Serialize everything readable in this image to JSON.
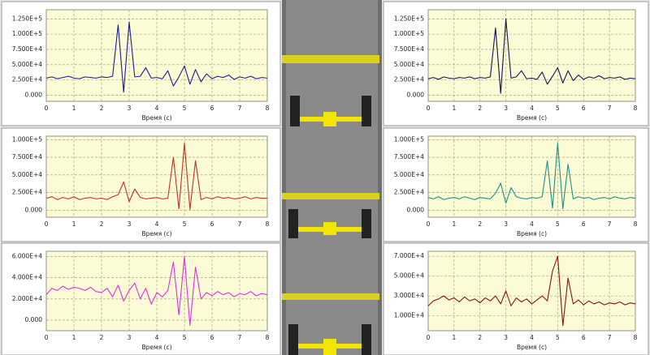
{
  "chart_data": [
    {
      "type": "line",
      "xlabel": "Время (с)",
      "color": "#1c1c8e",
      "grid": true,
      "x": [
        0,
        0.2,
        0.4,
        0.6,
        0.8,
        1,
        1.2,
        1.4,
        1.6,
        1.8,
        2,
        2.2,
        2.4,
        2.6,
        2.8,
        3,
        3.2,
        3.4,
        3.6,
        3.8,
        4,
        4.2,
        4.4,
        4.6,
        4.8,
        5,
        5.2,
        5.4,
        5.6,
        5.8,
        6,
        6.2,
        6.4,
        6.6,
        6.8,
        7,
        7.2,
        7.4,
        7.6,
        7.8,
        8
      ],
      "values": [
        28000,
        30000,
        27000,
        29000,
        31000,
        28000,
        27000,
        30000,
        29000,
        28000,
        30000,
        29000,
        31000,
        115000,
        5000,
        120000,
        30000,
        31000,
        45000,
        28000,
        29000,
        27000,
        40000,
        15000,
        30000,
        48000,
        18000,
        42000,
        22000,
        35000,
        27000,
        31000,
        29000,
        33000,
        26000,
        30000,
        28000,
        31000,
        27000,
        29000,
        28000
      ],
      "xlim": [
        0,
        8
      ],
      "xticks": [
        0,
        1,
        2,
        3,
        4,
        5,
        6,
        7,
        8
      ],
      "ylim": [
        -10000,
        140000
      ],
      "yticks": [
        {
          "value": 0,
          "label": "0.000"
        },
        {
          "value": 25000,
          "label": "2.500E+4"
        },
        {
          "value": 50000,
          "label": "5.000E+4"
        },
        {
          "value": 75000,
          "label": "7.500E+4"
        },
        {
          "value": 100000,
          "label": "1.000E+5"
        },
        {
          "value": 125000,
          "label": "1.250E+5"
        }
      ]
    },
    {
      "type": "line",
      "xlabel": "Время (с)",
      "color": "#141452",
      "grid": true,
      "x": [
        0,
        0.2,
        0.4,
        0.6,
        0.8,
        1,
        1.2,
        1.4,
        1.6,
        1.8,
        2,
        2.2,
        2.4,
        2.6,
        2.8,
        3,
        3.2,
        3.4,
        3.6,
        3.8,
        4,
        4.2,
        4.4,
        4.6,
        4.8,
        5,
        5.2,
        5.4,
        5.6,
        5.8,
        6,
        6.2,
        6.4,
        6.6,
        6.8,
        7,
        7.2,
        7.4,
        7.6,
        7.8,
        8
      ],
      "values": [
        27000,
        29000,
        26000,
        30000,
        28000,
        27000,
        29000,
        28000,
        30000,
        27000,
        29000,
        28000,
        30000,
        110000,
        3000,
        125000,
        28000,
        30000,
        40000,
        27000,
        28000,
        26000,
        38000,
        18000,
        31000,
        45000,
        20000,
        40000,
        24000,
        33000,
        26000,
        30000,
        28000,
        32000,
        27000,
        29000,
        28000,
        30000,
        26000,
        28000,
        27000
      ],
      "xlim": [
        0,
        8
      ],
      "xticks": [
        0,
        1,
        2,
        3,
        4,
        5,
        6,
        7,
        8
      ],
      "ylim": [
        -10000,
        140000
      ],
      "yticks": [
        {
          "value": 0,
          "label": "0.000"
        },
        {
          "value": 25000,
          "label": "2.500E+4"
        },
        {
          "value": 50000,
          "label": "5.000E+4"
        },
        {
          "value": 75000,
          "label": "7.500E+4"
        },
        {
          "value": 100000,
          "label": "1.000E+5"
        },
        {
          "value": 125000,
          "label": "1.250E+5"
        }
      ]
    },
    {
      "type": "line",
      "xlabel": "Время (с)",
      "color": "#c43222",
      "grid": true,
      "x": [
        0,
        0.2,
        0.4,
        0.6,
        0.8,
        1,
        1.2,
        1.4,
        1.6,
        1.8,
        2,
        2.2,
        2.4,
        2.6,
        2.8,
        3,
        3.2,
        3.4,
        3.6,
        3.8,
        4,
        4.2,
        4.4,
        4.6,
        4.8,
        5,
        5.2,
        5.4,
        5.6,
        5.8,
        6,
        6.2,
        6.4,
        6.6,
        6.8,
        7,
        7.2,
        7.4,
        7.6,
        7.8,
        8
      ],
      "values": [
        17000,
        19000,
        15000,
        18000,
        16000,
        19000,
        15000,
        17000,
        18000,
        16000,
        17000,
        15000,
        19000,
        22000,
        40000,
        12000,
        30000,
        18000,
        16000,
        17000,
        18000,
        16000,
        17000,
        75000,
        2000,
        95000,
        1000,
        70000,
        15000,
        18000,
        16000,
        19000,
        17000,
        18000,
        16000,
        17000,
        19000,
        16000,
        18000,
        17000,
        17000
      ],
      "xlim": [
        0,
        8
      ],
      "xticks": [
        0,
        1,
        2,
        3,
        4,
        5,
        6,
        7,
        8
      ],
      "ylim": [
        -10000,
        105000
      ],
      "yticks": [
        {
          "value": 0,
          "label": "0.000"
        },
        {
          "value": 25000,
          "label": "2.500E+4"
        },
        {
          "value": 50000,
          "label": "5.000E+4"
        },
        {
          "value": 75000,
          "label": "7.500E+4"
        },
        {
          "value": 100000,
          "label": "1.000E+5"
        }
      ]
    },
    {
      "type": "line",
      "xlabel": "Время (с)",
      "color": "#1f8f88",
      "grid": true,
      "x": [
        0,
        0.2,
        0.4,
        0.6,
        0.8,
        1,
        1.2,
        1.4,
        1.6,
        1.8,
        2,
        2.2,
        2.4,
        2.6,
        2.8,
        3,
        3.2,
        3.4,
        3.6,
        3.8,
        4,
        4.2,
        4.4,
        4.6,
        4.8,
        5,
        5.2,
        5.4,
        5.6,
        5.8,
        6,
        6.2,
        6.4,
        6.6,
        6.8,
        7,
        7.2,
        7.4,
        7.6,
        7.8,
        8
      ],
      "values": [
        18000,
        16000,
        19000,
        15000,
        17000,
        18000,
        16000,
        19000,
        17000,
        15000,
        18000,
        17000,
        16000,
        24000,
        38000,
        10000,
        32000,
        19000,
        17000,
        16000,
        18000,
        17000,
        19000,
        70000,
        3000,
        95000,
        2000,
        65000,
        16000,
        19000,
        17000,
        18000,
        15000,
        17000,
        18000,
        16000,
        19000,
        17000,
        16000,
        18000,
        17000
      ],
      "xlim": [
        0,
        8
      ],
      "xticks": [
        0,
        1,
        2,
        3,
        4,
        5,
        6,
        7,
        8
      ],
      "ylim": [
        -10000,
        105000
      ],
      "yticks": [
        {
          "value": 0,
          "label": "0.000"
        },
        {
          "value": 25000,
          "label": "2.500E+4"
        },
        {
          "value": 50000,
          "label": "5.000E+4"
        },
        {
          "value": 75000,
          "label": "7.500E+4"
        },
        {
          "value": 100000,
          "label": "1.000E+5"
        }
      ]
    },
    {
      "type": "line",
      "xlabel": "Время (с)",
      "color": "#e030e0",
      "grid": true,
      "x": [
        0,
        0.2,
        0.4,
        0.6,
        0.8,
        1,
        1.2,
        1.4,
        1.6,
        1.8,
        2,
        2.2,
        2.4,
        2.6,
        2.8,
        3,
        3.2,
        3.4,
        3.6,
        3.8,
        4,
        4.2,
        4.4,
        4.6,
        4.8,
        5,
        5.2,
        5.4,
        5.6,
        5.8,
        6,
        6.2,
        6.4,
        6.6,
        6.8,
        7,
        7.2,
        7.4,
        7.6,
        7.8,
        8
      ],
      "values": [
        24000,
        30000,
        28000,
        32000,
        29000,
        31000,
        30000,
        28000,
        31000,
        27000,
        26000,
        30000,
        22000,
        33000,
        18000,
        28000,
        35000,
        20000,
        30000,
        15000,
        26000,
        22000,
        28000,
        55000,
        5000,
        60000,
        -5000,
        50000,
        20000,
        26000,
        23000,
        27000,
        24000,
        26000,
        22000,
        25000,
        24000,
        27000,
        23000,
        25000,
        24000
      ],
      "xlim": [
        0,
        8
      ],
      "xticks": [
        0,
        1,
        2,
        3,
        4,
        5,
        6,
        7,
        8
      ],
      "ylim": [
        -10000,
        65000
      ],
      "yticks": [
        {
          "value": 0,
          "label": "0.000"
        },
        {
          "value": 20000,
          "label": "2.000E+4"
        },
        {
          "value": 40000,
          "label": "4.000E+4"
        },
        {
          "value": 60000,
          "label": "6.000E+4"
        }
      ]
    },
    {
      "type": "line",
      "xlabel": "Время (с)",
      "color": "#8b1212",
      "grid": true,
      "x": [
        0,
        0.2,
        0.4,
        0.6,
        0.8,
        1,
        1.2,
        1.4,
        1.6,
        1.8,
        2,
        2.2,
        2.4,
        2.6,
        2.8,
        3,
        3.2,
        3.4,
        3.6,
        3.8,
        4,
        4.2,
        4.4,
        4.6,
        4.8,
        5,
        5.2,
        5.4,
        5.6,
        5.8,
        6,
        6.2,
        6.4,
        6.6,
        6.8,
        7,
        7.2,
        7.4,
        7.6,
        7.8,
        8
      ],
      "values": [
        20000,
        25000,
        27000,
        30000,
        26000,
        28000,
        24000,
        29000,
        25000,
        27000,
        23000,
        28000,
        25000,
        30000,
        22000,
        35000,
        20000,
        28000,
        24000,
        27000,
        22000,
        26000,
        30000,
        25000,
        55000,
        70000,
        0,
        48000,
        22000,
        26000,
        21000,
        25000,
        22000,
        24000,
        21000,
        23000,
        22000,
        24000,
        21000,
        23000,
        22000
      ],
      "xlim": [
        0,
        8
      ],
      "xticks": [
        0,
        1,
        2,
        3,
        4,
        5,
        6,
        7,
        8
      ],
      "ylim": [
        -5000,
        75000
      ],
      "yticks": [
        {
          "value": 10000,
          "label": "1.000E+4"
        },
        {
          "value": 30000,
          "label": "3.000E+4"
        },
        {
          "value": 50000,
          "label": "5.000E+4"
        },
        {
          "value": 70000,
          "label": "7.000E+4"
        }
      ]
    }
  ]
}
